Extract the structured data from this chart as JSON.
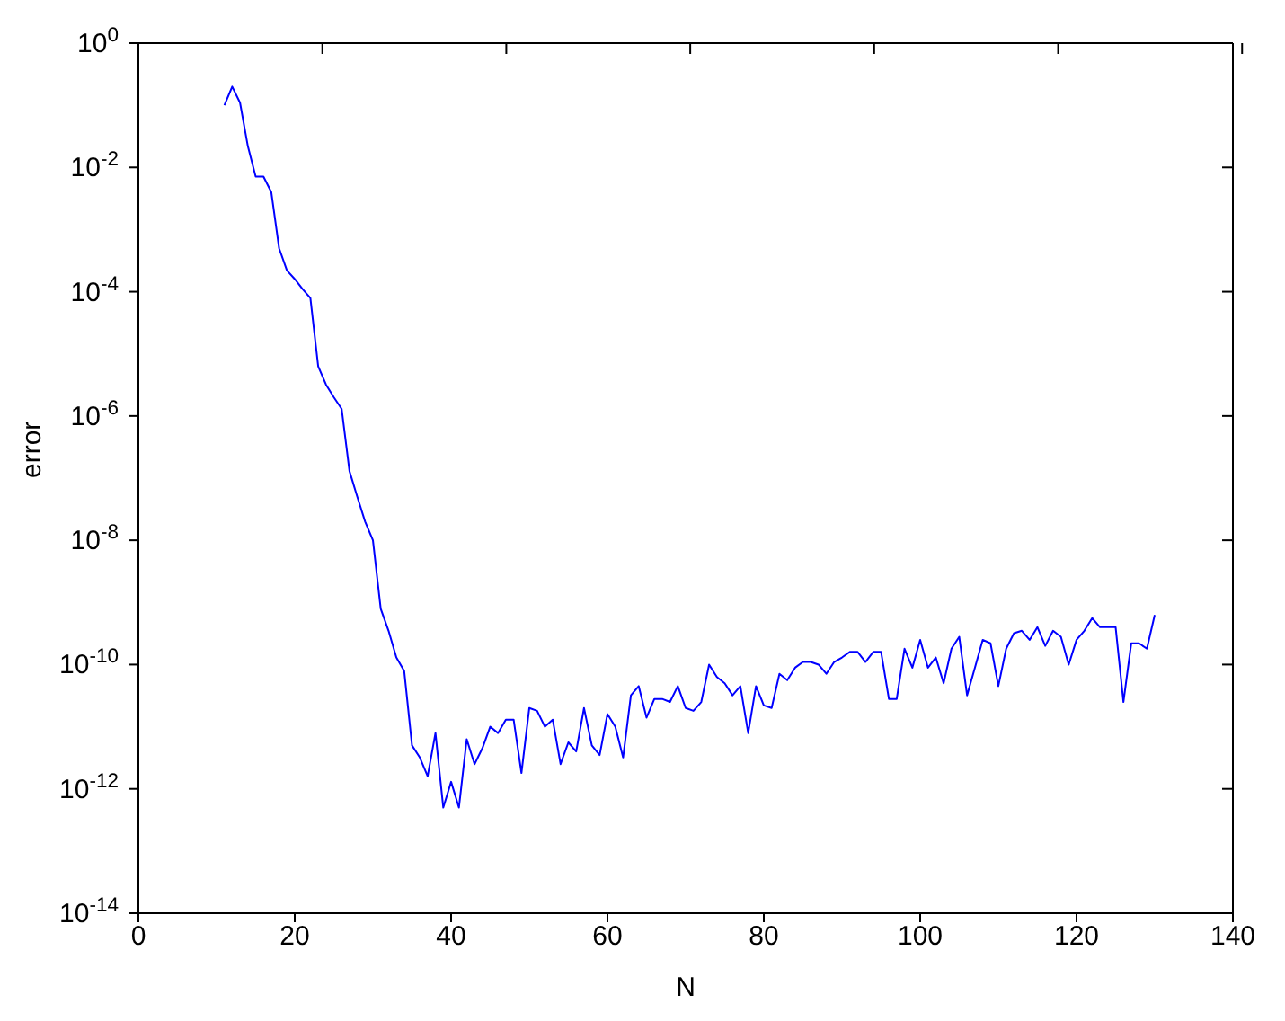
{
  "chart_data": {
    "type": "line",
    "xlabel": "N",
    "ylabel": "error",
    "log": "y",
    "xlim": [
      0,
      140
    ],
    "xticks": [
      0,
      20,
      40,
      60,
      80,
      100,
      120,
      140
    ],
    "ylim": [
      1e-14,
      1
    ],
    "yticks": [
      {
        "value": 1e-14,
        "label": "10$^{-14}$"
      },
      {
        "value": 1e-12,
        "label": "10$^{-12}$"
      },
      {
        "value": 1e-10,
        "label": "10$^{-10}$"
      },
      {
        "value": 1e-08,
        "label": "10$^{-8}$"
      },
      {
        "value": 1e-06,
        "label": "10$^{-6}$"
      },
      {
        "value": 0.0001,
        "label": "10$^{-4}$"
      },
      {
        "value": 0.01,
        "label": "10$^{-2}$"
      },
      {
        "value": 1,
        "label": "10$^{0}$"
      }
    ],
    "legend": false,
    "marker": "none",
    "line_style": "solid",
    "x": [
      11,
      12,
      13,
      14,
      15,
      16,
      17,
      18,
      19,
      20,
      21,
      22,
      23,
      24,
      25,
      26,
      27,
      28,
      29,
      30,
      31,
      32,
      33,
      34,
      35,
      36,
      37,
      38,
      39,
      40,
      41,
      42,
      43,
      44,
      45,
      46,
      47,
      48,
      49,
      50,
      51,
      52,
      53,
      54,
      55,
      56,
      57,
      58,
      59,
      60,
      61,
      62,
      63,
      64,
      65,
      66,
      67,
      68,
      69,
      70,
      71,
      72,
      73,
      74,
      75,
      76,
      77,
      78,
      79,
      80,
      81,
      82,
      83,
      84,
      85,
      86,
      87,
      88,
      89,
      90,
      91,
      92,
      93,
      94,
      95,
      96,
      97,
      98,
      99,
      100,
      101,
      102,
      103,
      104,
      105,
      106,
      107,
      108,
      109,
      110,
      111,
      112,
      113,
      114,
      115,
      116,
      117,
      118,
      119,
      120,
      121,
      122,
      123,
      124,
      125,
      126,
      127,
      128,
      129,
      130
    ],
    "series": [
      {
        "color": "#0000ff",
        "values": [
          0.1,
          0.2,
          0.11,
          0.022,
          0.0071,
          0.0071,
          0.004,
          0.0005,
          0.00022,
          0.00016,
          0.00011,
          7.9e-05,
          6.3e-06,
          3.2e-06,
          2e-06,
          1.3e-06,
          1.3e-07,
          5e-08,
          2e-08,
          1e-08,
          7.9e-10,
          3.5e-10,
          1.3e-10,
          7.9e-11,
          5e-12,
          3.2e-12,
          1.6e-12,
          7.9e-12,
          5e-13,
          1.3e-12,
          5e-13,
          6.3e-12,
          2.5e-12,
          4.5e-12,
          1e-11,
          7.9e-12,
          1.3e-11,
          1.3e-11,
          1.8e-12,
          2e-11,
          1.8e-11,
          1e-11,
          1.3e-11,
          2.5e-12,
          5.6e-12,
          4e-12,
          2e-11,
          5e-12,
          3.5e-12,
          1.6e-11,
          1e-11,
          3.2e-12,
          3.2e-11,
          4.5e-11,
          1.4e-11,
          2.8e-11,
          2.8e-11,
          2.5e-11,
          4.5e-11,
          2e-11,
          1.8e-11,
          2.5e-11,
          1e-10,
          6.3e-11,
          5e-11,
          3.2e-11,
          4.5e-11,
          7.9e-12,
          4.5e-11,
          2.2e-11,
          2e-11,
          7.1e-11,
          5.6e-11,
          8.9e-11,
          1.1e-10,
          1.1e-10,
          1e-10,
          7.1e-11,
          1.1e-10,
          1.3e-10,
          1.6e-10,
          1.6e-10,
          1.1e-10,
          1.6e-10,
          1.6e-10,
          2.8e-11,
          2.8e-11,
          1.8e-10,
          8.9e-11,
          2.5e-10,
          8.9e-11,
          1.3e-10,
          5e-11,
          1.8e-10,
          2.8e-10,
          3.2e-11,
          8.9e-11,
          2.5e-10,
          2.2e-10,
          4.5e-11,
          1.8e-10,
          3.2e-10,
          3.5e-10,
          2.5e-10,
          4e-10,
          2e-10,
          3.5e-10,
          2.8e-10,
          1e-10,
          2.5e-10,
          3.5e-10,
          5.6e-10,
          4e-10,
          4e-10,
          4e-10,
          2.5e-11,
          2.2e-10,
          2.2e-10,
          1.8e-10,
          6.3e-10
        ]
      }
    ]
  }
}
